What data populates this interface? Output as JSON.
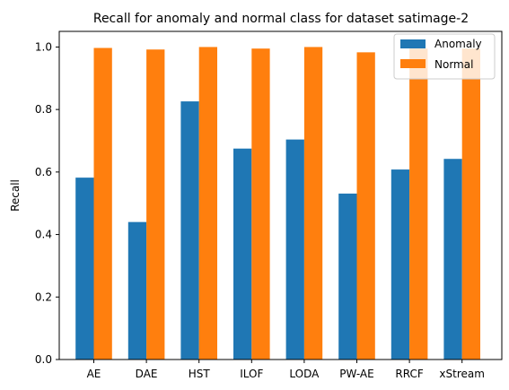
{
  "chart_data": {
    "type": "bar",
    "title": "Recall for anomaly and normal class for dataset satimage-2",
    "xlabel": "",
    "ylabel": "Recall",
    "ylim": [
      0,
      1.05
    ],
    "yticks": [
      "0.0",
      "0.2",
      "0.4",
      "0.6",
      "0.8",
      "1.0"
    ],
    "categories": [
      "AE",
      "DAE",
      "HST",
      "ILOF",
      "LODA",
      "PW-AE",
      "RRCF",
      "xStream"
    ],
    "series": [
      {
        "name": "Anomaly",
        "color": "#1f77b4",
        "values": [
          0.582,
          0.44,
          0.826,
          0.675,
          0.704,
          0.531,
          0.608,
          0.642
        ]
      },
      {
        "name": "Normal",
        "color": "#ff7f0e",
        "values": [
          0.997,
          0.992,
          1.0,
          0.995,
          1.0,
          0.983,
          0.995,
          0.995
        ]
      }
    ],
    "legend": "top-right",
    "grid": false
  }
}
